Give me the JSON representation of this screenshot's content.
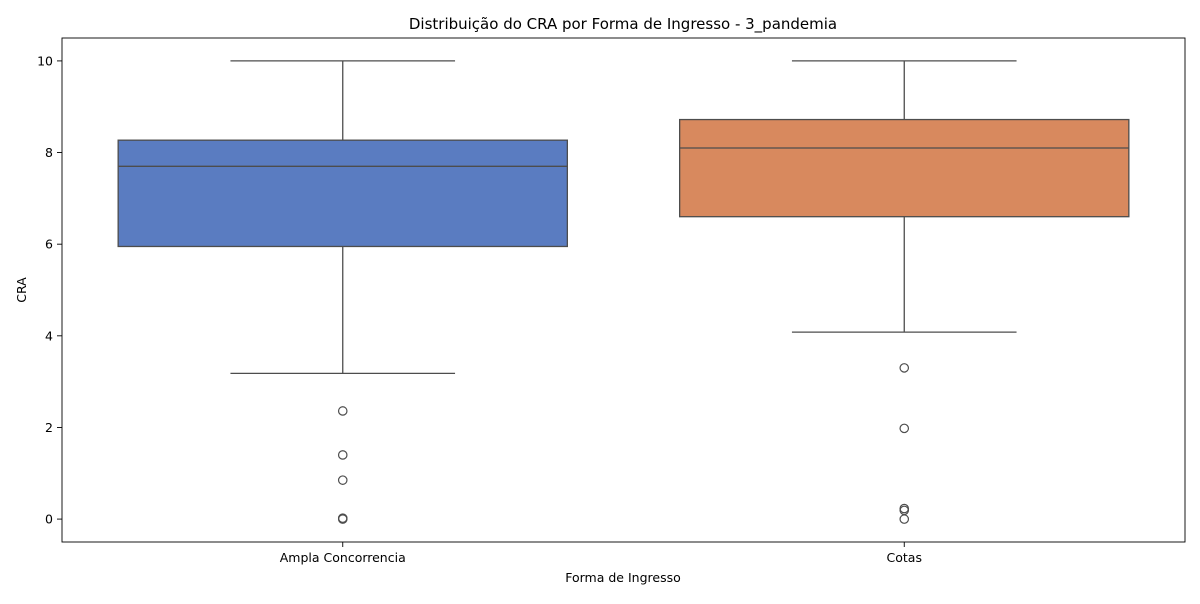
{
  "chart_data": {
    "type": "box",
    "title": "Distribuição do CRA por Forma de Ingresso - 3_pandemia",
    "xlabel": "Forma de Ingresso",
    "ylabel": "CRA",
    "ylim": [
      -0.5,
      10.5
    ],
    "yticks": [
      "0",
      "2",
      "4",
      "6",
      "8",
      "10"
    ],
    "grid": false,
    "categories": [
      "Ampla Concorrencia",
      "Cotas"
    ],
    "boxes": [
      {
        "category": "Ampla Concorrencia",
        "color": "#5a7cc1",
        "whisker_low": 3.18,
        "q1": 5.95,
        "median": 7.7,
        "q3": 8.27,
        "whisker_high": 10,
        "outliers": [
          2.36,
          1.4,
          0.85,
          0.02,
          0.0
        ]
      },
      {
        "category": "Cotas",
        "color": "#d8895e",
        "whisker_low": 4.08,
        "q1": 6.6,
        "median": 8.1,
        "q3": 8.72,
        "whisker_high": 10,
        "outliers": [
          3.3,
          1.98,
          0.23,
          0.19,
          0.0
        ]
      }
    ]
  }
}
